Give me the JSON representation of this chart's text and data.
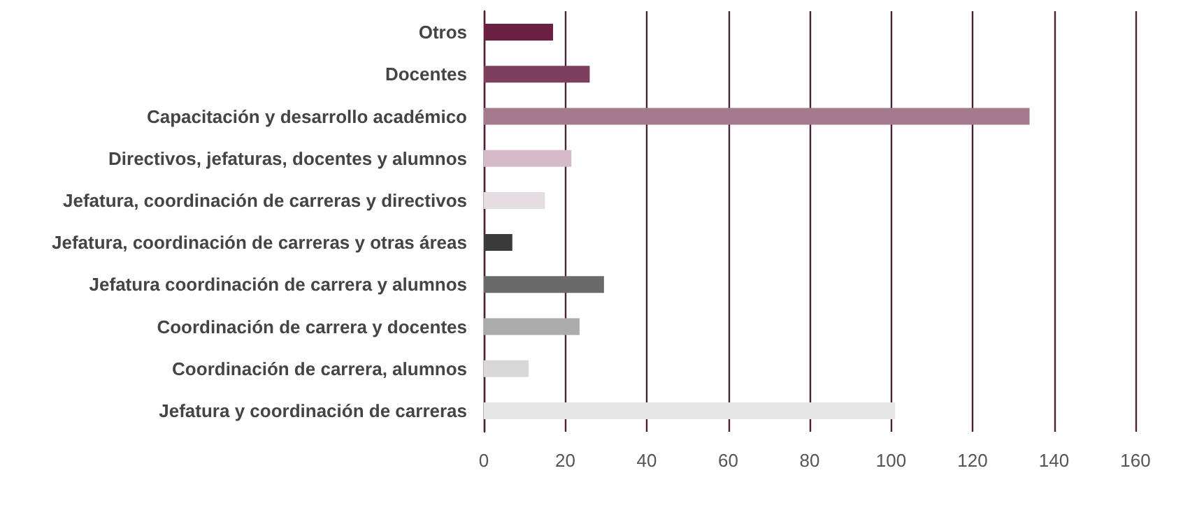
{
  "chart_data": {
    "type": "bar",
    "orientation": "horizontal",
    "categories": [
      "Otros",
      "Docentes",
      "Capacitación y desarrollo académico",
      "Directivos, jefaturas, docentes y alumnos",
      "Jefatura, coordinación de carreras y directivos",
      "Jefatura, coordinación de carreras y otras áreas",
      "Jefatura coordinación de carrera y alumnos",
      "Coordinación de carrera y docentes",
      "Coordinación de carrera, alumnos",
      "Jefatura y coordinación de carreras"
    ],
    "values": [
      17,
      26,
      134,
      21.5,
      15,
      7,
      29.5,
      23.5,
      11,
      101
    ],
    "colors": [
      "#6b1f43",
      "#7e3f5f",
      "#a57a8d",
      "#d5bcc8",
      "#e6dde2",
      "#3a3a3a",
      "#6a6a6a",
      "#acacac",
      "#d8d8d8",
      "#e5e5e5"
    ],
    "xlim": [
      0,
      160
    ],
    "xticks": [
      0,
      20,
      40,
      60,
      80,
      100,
      120,
      140,
      160
    ],
    "grid": "x"
  }
}
